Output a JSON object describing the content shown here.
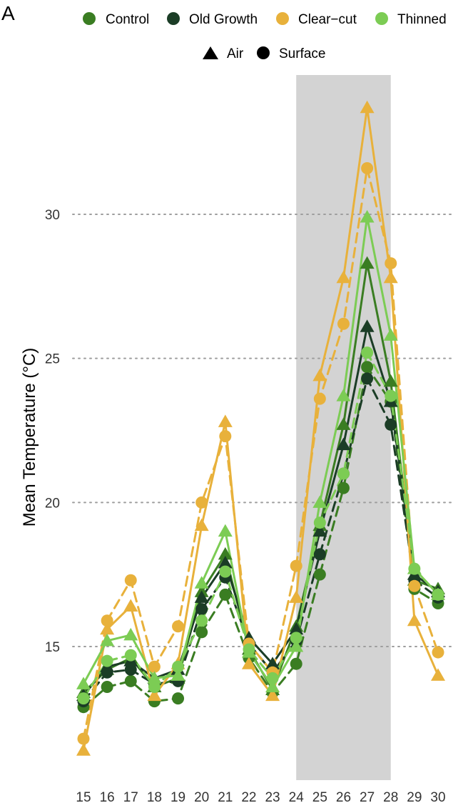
{
  "panel_label": "A",
  "chart_data": {
    "type": "line",
    "title": "",
    "xlabel": "",
    "ylabel": "Mean Temperature (°C)",
    "x": [
      15,
      16,
      17,
      18,
      19,
      20,
      21,
      22,
      23,
      24,
      25,
      26,
      27,
      28,
      29,
      30
    ],
    "xlim": [
      15,
      30
    ],
    "ylim": [
      10.5,
      34.8
    ],
    "yticks": [
      15,
      20,
      25,
      30
    ],
    "grid": "horizontal dotted at y ticks",
    "highlight_band": {
      "x_start": 24,
      "x_end": 28,
      "color": "#d3d3d3"
    },
    "legend": {
      "placement": "top",
      "treatments": [
        {
          "name": "Control",
          "color": "#3a7d22"
        },
        {
          "name": "Old Growth",
          "color": "#1b3d26"
        },
        {
          "name": "Clear−cut",
          "color": "#e8b13b"
        },
        {
          "name": "Thinned",
          "color": "#7ccc54"
        }
      ],
      "shapes": [
        {
          "name": "Air",
          "symbol": "triangle",
          "line": "solid"
        },
        {
          "name": "Surface",
          "symbol": "circle",
          "line": "dashed"
        }
      ]
    },
    "series": [
      {
        "name": "Control Air",
        "treatment": "Control",
        "measure": "Air",
        "color": "#3a7d22",
        "values": [
          13.4,
          14.2,
          14.6,
          13.6,
          13.9,
          16.9,
          18.2,
          14.9,
          13.5,
          15.7,
          19.2,
          22.7,
          28.3,
          24.2,
          17.3,
          17.0
        ]
      },
      {
        "name": "Control Surface",
        "treatment": "Control",
        "measure": "Surface",
        "color": "#3a7d22",
        "values": [
          12.9,
          13.6,
          13.8,
          13.1,
          13.2,
          15.5,
          16.8,
          14.6,
          13.4,
          14.4,
          17.5,
          20.5,
          24.7,
          23.5,
          17.0,
          16.5
        ]
      },
      {
        "name": "Old Growth Air",
        "treatment": "Old Growth",
        "measure": "Air",
        "color": "#1b3d26",
        "values": [
          13.3,
          14.3,
          14.5,
          13.9,
          14.2,
          16.7,
          17.9,
          15.3,
          14.4,
          15.6,
          19.0,
          22.0,
          26.1,
          23.5,
          17.5,
          16.9
        ]
      },
      {
        "name": "Old Growth Surface",
        "treatment": "Old Growth",
        "measure": "Surface",
        "color": "#1b3d26",
        "values": [
          13.1,
          14.1,
          14.2,
          13.7,
          13.8,
          16.3,
          17.4,
          15.1,
          14.1,
          15.2,
          18.2,
          21.0,
          24.3,
          22.7,
          17.3,
          16.7
        ]
      },
      {
        "name": "Clear−cut Air",
        "treatment": "Clear−cut",
        "measure": "Air",
        "color": "#e8b13b",
        "values": [
          11.4,
          15.6,
          16.4,
          13.3,
          14.4,
          19.2,
          22.8,
          14.4,
          13.3,
          16.7,
          24.4,
          27.8,
          33.7,
          27.8,
          15.9,
          14.0
        ]
      },
      {
        "name": "Clear−cut Surface",
        "treatment": "Clear−cut",
        "measure": "Surface",
        "color": "#e8b13b",
        "values": [
          11.8,
          15.9,
          17.3,
          14.3,
          15.7,
          20.0,
          22.3,
          15.1,
          14.1,
          17.8,
          23.6,
          26.2,
          31.6,
          28.3,
          17.1,
          14.8
        ]
      },
      {
        "name": "Thinned Air",
        "treatment": "Thinned",
        "measure": "Air",
        "color": "#7ccc54",
        "values": [
          13.7,
          15.2,
          15.4,
          13.9,
          14.0,
          17.2,
          19.0,
          14.8,
          13.6,
          15.0,
          20.0,
          23.7,
          29.9,
          25.8,
          17.7,
          16.8
        ]
      },
      {
        "name": "Thinned Surface",
        "treatment": "Thinned",
        "measure": "Surface",
        "color": "#7ccc54",
        "values": [
          13.2,
          14.5,
          14.7,
          13.6,
          14.3,
          15.9,
          17.6,
          14.9,
          13.9,
          15.3,
          19.3,
          21.0,
          25.2,
          23.7,
          17.7,
          16.8
        ]
      }
    ]
  }
}
